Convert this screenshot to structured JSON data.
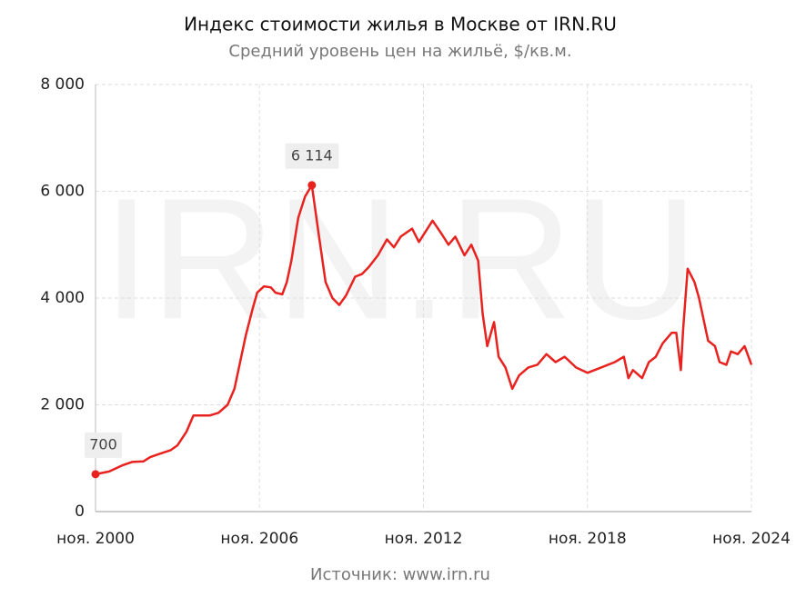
{
  "chart_data": {
    "type": "line",
    "title": "Индекс стоимости жилья в Москве от IRN.RU",
    "subtitle": "Средний уровень цен на жильё, $/кв.м.",
    "source": "Источник: www.irn.ru",
    "watermark": "IRN.RU",
    "color": "#e8221f",
    "grid": true,
    "x": [
      "2000-11",
      "2001-05",
      "2001-11",
      "2002-03",
      "2002-08",
      "2002-11",
      "2003-03",
      "2003-08",
      "2003-11",
      "2004-03",
      "2004-06",
      "2005-01",
      "2005-05",
      "2005-09",
      "2005-12",
      "2006-02",
      "2006-05",
      "2006-08",
      "2006-10",
      "2007-01",
      "2007-04",
      "2007-06",
      "2007-09",
      "2007-11",
      "2008-01",
      "2008-04",
      "2008-07",
      "2008-10",
      "2009-01",
      "2009-04",
      "2009-07",
      "2009-10",
      "2010-01",
      "2010-05",
      "2010-08",
      "2010-11",
      "2011-03",
      "2011-07",
      "2011-10",
      "2012-01",
      "2012-06",
      "2012-09",
      "2013-03",
      "2013-07",
      "2013-10",
      "2014-01",
      "2014-05",
      "2014-08",
      "2014-11",
      "2015-01",
      "2015-03",
      "2015-06",
      "2015-08",
      "2015-11",
      "2016-02",
      "2016-05",
      "2016-09",
      "2017-01",
      "2017-05",
      "2017-09",
      "2018-01",
      "2018-06",
      "2018-11",
      "2019-05",
      "2019-11",
      "2020-03",
      "2020-05",
      "2020-07",
      "2020-11",
      "2021-02",
      "2021-05",
      "2021-08",
      "2021-12",
      "2022-02",
      "2022-04",
      "2022-05",
      "2022-07",
      "2022-10",
      "2022-12",
      "2023-02",
      "2023-04",
      "2023-07",
      "2023-09",
      "2023-12",
      "2024-02",
      "2024-05",
      "2024-08",
      "2024-11"
    ],
    "values": [
      700,
      750,
      870,
      930,
      940,
      1020,
      1080,
      1150,
      1240,
      1500,
      1800,
      1800,
      1850,
      2000,
      2300,
      2700,
      3300,
      3800,
      4100,
      4220,
      4200,
      4100,
      4070,
      4300,
      4700,
      5500,
      5900,
      6114,
      5200,
      4300,
      4000,
      3870,
      4050,
      4400,
      4450,
      4580,
      4800,
      5100,
      4950,
      5150,
      5300,
      5050,
      5450,
      5200,
      5000,
      5150,
      4800,
      5000,
      4700,
      3700,
      3100,
      3550,
      2900,
      2700,
      2300,
      2550,
      2700,
      2750,
      2950,
      2800,
      2900,
      2700,
      2600,
      2700,
      2800,
      2900,
      2500,
      2650,
      2500,
      2800,
      2900,
      3150,
      3350,
      3350,
      2650,
      3400,
      4550,
      4300,
      4000,
      3600,
      3200,
      3100,
      2800,
      2750,
      3000,
      2950,
      3100,
      2750
    ],
    "value_labels": [
      "700",
      null,
      null,
      null,
      null,
      null,
      null,
      null,
      null,
      null,
      null,
      null,
      null,
      null,
      null,
      null,
      null,
      null,
      null,
      null,
      null,
      null,
      null,
      null,
      null,
      null,
      null,
      "6 114",
      null,
      null,
      null,
      null,
      null,
      null,
      null,
      null,
      null,
      null,
      null,
      null,
      null,
      null,
      null,
      null,
      null,
      null,
      null,
      null,
      null,
      null,
      null,
      null,
      null,
      null,
      null,
      null,
      null,
      null,
      null,
      null,
      null,
      null,
      null,
      null,
      null,
      null,
      null,
      null,
      null,
      null,
      null,
      null,
      null,
      null,
      null,
      null,
      null,
      null,
      null,
      null,
      null,
      null,
      null,
      null,
      null,
      null,
      null,
      null
    ],
    "xlim": [
      "2000-11",
      "2024-11"
    ],
    "xticks": [
      {
        "value": "2000-11",
        "label": "ноя. 2000"
      },
      {
        "value": "2006-11",
        "label": "ноя. 2006"
      },
      {
        "value": "2012-11",
        "label": "ноя. 2012"
      },
      {
        "value": "2018-11",
        "label": "ноя. 2018"
      },
      {
        "value": "2024-11",
        "label": "ноя. 2024"
      }
    ],
    "ylim": [
      0,
      8000
    ],
    "yticks": [
      0,
      {
        "value": 2000,
        "label": "2 000"
      },
      {
        "value": 4000,
        "label": "4 000"
      },
      {
        "value": 6000,
        "label": "6 000"
      },
      {
        "value": 8000,
        "label": "8 000"
      }
    ]
  }
}
